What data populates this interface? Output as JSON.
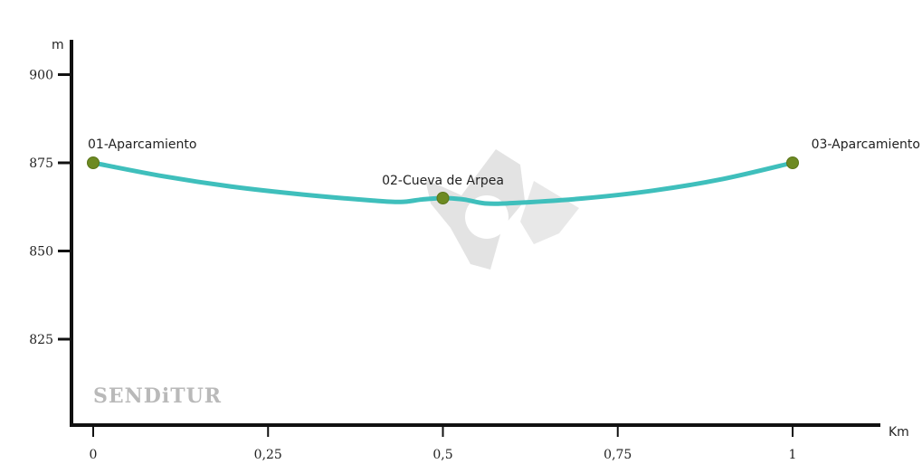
{
  "chart_data": {
    "type": "line",
    "ylabel": "m",
    "xlabel": "Km",
    "xlim": [
      0,
      1.1
    ],
    "ylim": [
      805,
      905
    ],
    "yticks": [
      {
        "value": 900,
        "label": "900"
      },
      {
        "value": 875,
        "label": "875"
      },
      {
        "value": 850,
        "label": "850"
      },
      {
        "value": 825,
        "label": "825"
      }
    ],
    "xticks": [
      {
        "value": 0,
        "label": "0"
      },
      {
        "value": 0.25,
        "label": "0,25"
      },
      {
        "value": 0.5,
        "label": "0,5"
      },
      {
        "value": 0.75,
        "label": "0,75"
      },
      {
        "value": 1,
        "label": "1"
      }
    ],
    "series": [
      {
        "color": "#3fbfbc",
        "x": [
          0,
          0.1,
          0.2,
          0.3,
          0.4,
          0.44,
          0.47,
          0.5,
          0.53,
          0.56,
          0.6,
          0.7,
          0.8,
          0.9,
          1.0
        ],
        "y": [
          875,
          871.2,
          868.2,
          866,
          864.3,
          863.9,
          864.6,
          865,
          864.6,
          863.5,
          863.6,
          864.9,
          867.1,
          870.4,
          875
        ]
      }
    ],
    "waypoints": [
      {
        "label": "01-Aparcamiento",
        "x": 0,
        "y": 875
      },
      {
        "label": "02-Cueva de Arpea",
        "x": 0.5,
        "y": 865
      },
      {
        "label": "03-Aparcamiento",
        "x": 1.0,
        "y": 875
      }
    ],
    "watermark": "SENDiTUR",
    "colors": {
      "line": "#3fbfbc",
      "point": "#6d8a22",
      "axis": "#111111",
      "watermark": "#c4c4c4"
    }
  }
}
